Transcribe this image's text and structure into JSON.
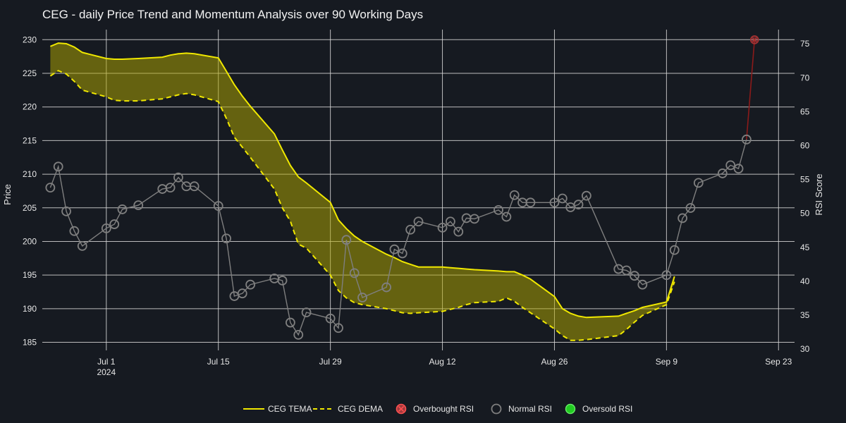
{
  "chart_data": {
    "type": "line",
    "title": "CEG - daily Price Trend and Momentum Analysis over 90 Working Days",
    "xlabel": "",
    "ylabel": "Price",
    "y2label": "RSI Score",
    "ylim": [
      183.8,
      231.5
    ],
    "y2lim": [
      29.8,
      77.1
    ],
    "y_ticks": [
      185,
      190,
      195,
      200,
      205,
      210,
      215,
      220,
      225,
      230
    ],
    "y2_ticks": [
      30,
      35,
      40,
      45,
      50,
      55,
      60,
      65,
      70,
      75
    ],
    "x_ticks": [
      {
        "date": "2024-07-01",
        "label": "Jul 1",
        "sublabel": "2024"
      },
      {
        "date": "2024-07-15",
        "label": "Jul 15",
        "sublabel": ""
      },
      {
        "date": "2024-07-29",
        "label": "Jul 29",
        "sublabel": ""
      },
      {
        "date": "2024-08-12",
        "label": "Aug 12",
        "sublabel": ""
      },
      {
        "date": "2024-08-26",
        "label": "Aug 26",
        "sublabel": ""
      },
      {
        "date": "2024-09-09",
        "label": "Sep 9",
        "sublabel": ""
      },
      {
        "date": "2024-09-23",
        "label": "Sep 23",
        "sublabel": ""
      }
    ],
    "xlim": [
      "2024-06-23",
      "2024-09-25"
    ],
    "grid": true,
    "legend_position": "bottom",
    "colors": {
      "background": "#161a21",
      "tema": "#f0e800",
      "dema": "#f0e800",
      "fill": "rgba(180,170,0,0.5)",
      "rsi_normal": "#7f7f7f",
      "overbought_marker": "#ff5050",
      "overbought_line": "#8b1a1a",
      "oversold_marker": "#22cc22"
    },
    "series": [
      {
        "name": "CEG TEMA",
        "axis": "price",
        "style": "solid",
        "points": [
          [
            "2024-06-24",
            229.0
          ],
          [
            "2024-06-25",
            229.5
          ],
          [
            "2024-06-26",
            229.4
          ],
          [
            "2024-06-27",
            228.9
          ],
          [
            "2024-06-28",
            228.1
          ],
          [
            "2024-07-01",
            227.2
          ],
          [
            "2024-07-02",
            227.1
          ],
          [
            "2024-07-03",
            227.1
          ],
          [
            "2024-07-05",
            227.2
          ],
          [
            "2024-07-08",
            227.4
          ],
          [
            "2024-07-09",
            227.7
          ],
          [
            "2024-07-10",
            227.9
          ],
          [
            "2024-07-11",
            228.0
          ],
          [
            "2024-07-12",
            227.9
          ],
          [
            "2024-07-15",
            227.3
          ],
          [
            "2024-07-16",
            225.3
          ],
          [
            "2024-07-17",
            223.3
          ],
          [
            "2024-07-18",
            221.6
          ],
          [
            "2024-07-19",
            220.1
          ],
          [
            "2024-07-22",
            216.0
          ],
          [
            "2024-07-23",
            213.6
          ],
          [
            "2024-07-24",
            211.3
          ],
          [
            "2024-07-25",
            209.6
          ],
          [
            "2024-07-26",
            208.7
          ],
          [
            "2024-07-29",
            205.8
          ],
          [
            "2024-07-30",
            203.2
          ],
          [
            "2024-07-31",
            201.9
          ],
          [
            "2024-08-01",
            200.8
          ],
          [
            "2024-08-02",
            200.0
          ],
          [
            "2024-08-05",
            198.1
          ],
          [
            "2024-08-06",
            197.6
          ],
          [
            "2024-08-07",
            197.0
          ],
          [
            "2024-08-08",
            196.6
          ],
          [
            "2024-08-09",
            196.2
          ],
          [
            "2024-08-12",
            196.2
          ],
          [
            "2024-08-13",
            196.1
          ],
          [
            "2024-08-14",
            196.0
          ],
          [
            "2024-08-15",
            195.9
          ],
          [
            "2024-08-16",
            195.8
          ],
          [
            "2024-08-19",
            195.6
          ],
          [
            "2024-08-20",
            195.5
          ],
          [
            "2024-08-21",
            195.5
          ],
          [
            "2024-08-22",
            195.0
          ],
          [
            "2024-08-23",
            194.4
          ],
          [
            "2024-08-26",
            191.8
          ],
          [
            "2024-08-27",
            190.0
          ],
          [
            "2024-08-28",
            189.3
          ],
          [
            "2024-08-29",
            188.9
          ],
          [
            "2024-08-30",
            188.7
          ],
          [
            "2024-09-03",
            188.9
          ],
          [
            "2024-09-04",
            189.3
          ],
          [
            "2024-09-05",
            189.7
          ],
          [
            "2024-09-06",
            190.2
          ],
          [
            "2024-09-09",
            191.0
          ],
          [
            "2024-09-10",
            194.8
          ]
        ]
      },
      {
        "name": "CEG DEMA",
        "axis": "price",
        "style": "dash",
        "points": [
          [
            "2024-06-24",
            224.6
          ],
          [
            "2024-06-25",
            225.4
          ],
          [
            "2024-06-26",
            224.9
          ],
          [
            "2024-06-27",
            223.8
          ],
          [
            "2024-06-28",
            222.5
          ],
          [
            "2024-07-01",
            221.5
          ],
          [
            "2024-07-02",
            221.0
          ],
          [
            "2024-07-03",
            220.9
          ],
          [
            "2024-07-05",
            220.9
          ],
          [
            "2024-07-08",
            221.2
          ],
          [
            "2024-07-09",
            221.5
          ],
          [
            "2024-07-10",
            221.8
          ],
          [
            "2024-07-11",
            222.0
          ],
          [
            "2024-07-12",
            221.8
          ],
          [
            "2024-07-15",
            220.8
          ],
          [
            "2024-07-16",
            218.3
          ],
          [
            "2024-07-17",
            215.5
          ],
          [
            "2024-07-18",
            214.0
          ],
          [
            "2024-07-19",
            212.5
          ],
          [
            "2024-07-22",
            207.8
          ],
          [
            "2024-07-23",
            205.0
          ],
          [
            "2024-07-24",
            203.0
          ],
          [
            "2024-07-25",
            199.6
          ],
          [
            "2024-07-26",
            199.0
          ],
          [
            "2024-07-29",
            195.0
          ],
          [
            "2024-07-30",
            192.7
          ],
          [
            "2024-07-31",
            191.6
          ],
          [
            "2024-08-01",
            190.9
          ],
          [
            "2024-08-02",
            190.6
          ],
          [
            "2024-08-05",
            190.0
          ],
          [
            "2024-08-06",
            189.7
          ],
          [
            "2024-08-07",
            189.4
          ],
          [
            "2024-08-08",
            189.3
          ],
          [
            "2024-08-09",
            189.4
          ],
          [
            "2024-08-12",
            189.6
          ],
          [
            "2024-08-13",
            189.9
          ],
          [
            "2024-08-14",
            190.2
          ],
          [
            "2024-08-15",
            190.6
          ],
          [
            "2024-08-16",
            190.9
          ],
          [
            "2024-08-19",
            191.1
          ],
          [
            "2024-08-20",
            191.6
          ],
          [
            "2024-08-21",
            191.1
          ],
          [
            "2024-08-22",
            190.2
          ],
          [
            "2024-08-23",
            189.4
          ],
          [
            "2024-08-26",
            187.0
          ],
          [
            "2024-08-27",
            186.0
          ],
          [
            "2024-08-28",
            185.3
          ],
          [
            "2024-08-29",
            185.3
          ],
          [
            "2024-08-30",
            185.4
          ],
          [
            "2024-09-03",
            186.0
          ],
          [
            "2024-09-04",
            186.9
          ],
          [
            "2024-09-05",
            188.0
          ],
          [
            "2024-09-06",
            189.0
          ],
          [
            "2024-09-09",
            190.6
          ],
          [
            "2024-09-10",
            194.0
          ]
        ]
      },
      {
        "name": "Normal RSI",
        "axis": "rsi",
        "style": "markers+line",
        "points": [
          [
            "2024-06-24",
            53.8
          ],
          [
            "2024-06-25",
            56.9
          ],
          [
            "2024-06-26",
            50.3
          ],
          [
            "2024-06-27",
            47.4
          ],
          [
            "2024-06-28",
            45.2
          ],
          [
            "2024-07-01",
            47.8
          ],
          [
            "2024-07-02",
            48.4
          ],
          [
            "2024-07-03",
            50.6
          ],
          [
            "2024-07-05",
            51.2
          ],
          [
            "2024-07-08",
            53.6
          ],
          [
            "2024-07-09",
            53.8
          ],
          [
            "2024-07-10",
            55.3
          ],
          [
            "2024-07-11",
            54.0
          ],
          [
            "2024-07-12",
            54.0
          ],
          [
            "2024-07-15",
            51.1
          ],
          [
            "2024-07-16",
            46.3
          ],
          [
            "2024-07-17",
            37.8
          ],
          [
            "2024-07-18",
            38.2
          ],
          [
            "2024-07-19",
            39.5
          ],
          [
            "2024-07-22",
            40.4
          ],
          [
            "2024-07-23",
            40.1
          ],
          [
            "2024-07-24",
            33.9
          ],
          [
            "2024-07-25",
            32.1
          ],
          [
            "2024-07-26",
            35.4
          ],
          [
            "2024-07-29",
            34.5
          ],
          [
            "2024-07-30",
            33.1
          ],
          [
            "2024-07-31",
            46.1
          ],
          [
            "2024-08-01",
            41.2
          ],
          [
            "2024-08-02",
            37.6
          ],
          [
            "2024-08-05",
            39.1
          ],
          [
            "2024-08-06",
            44.7
          ],
          [
            "2024-08-07",
            44.1
          ],
          [
            "2024-08-08",
            47.6
          ],
          [
            "2024-08-09",
            48.8
          ],
          [
            "2024-08-12",
            47.9
          ],
          [
            "2024-08-13",
            48.8
          ],
          [
            "2024-08-14",
            47.3
          ],
          [
            "2024-08-15",
            49.3
          ],
          [
            "2024-08-16",
            49.2
          ],
          [
            "2024-08-19",
            50.5
          ],
          [
            "2024-08-20",
            49.5
          ],
          [
            "2024-08-21",
            52.7
          ],
          [
            "2024-08-22",
            51.6
          ],
          [
            "2024-08-23",
            51.6
          ],
          [
            "2024-08-26",
            51.6
          ],
          [
            "2024-08-27",
            52.2
          ],
          [
            "2024-08-28",
            50.9
          ],
          [
            "2024-08-29",
            51.3
          ],
          [
            "2024-08-30",
            52.6
          ],
          [
            "2024-09-03",
            41.8
          ],
          [
            "2024-09-04",
            41.6
          ],
          [
            "2024-09-05",
            40.8
          ],
          [
            "2024-09-06",
            39.5
          ],
          [
            "2024-09-09",
            40.9
          ],
          [
            "2024-09-10",
            44.6
          ],
          [
            "2024-09-11",
            49.3
          ],
          [
            "2024-09-12",
            50.8
          ],
          [
            "2024-09-13",
            54.5
          ],
          [
            "2024-09-16",
            55.9
          ],
          [
            "2024-09-17",
            57.1
          ],
          [
            "2024-09-18",
            56.6
          ],
          [
            "2024-09-19",
            60.9
          ]
        ]
      },
      {
        "name": "Overbought RSI",
        "axis": "rsi",
        "style": "markers",
        "points": [
          [
            "2024-09-20",
            75.6
          ]
        ]
      },
      {
        "name": "Oversold RSI",
        "axis": "rsi",
        "style": "markers",
        "points": []
      }
    ]
  }
}
